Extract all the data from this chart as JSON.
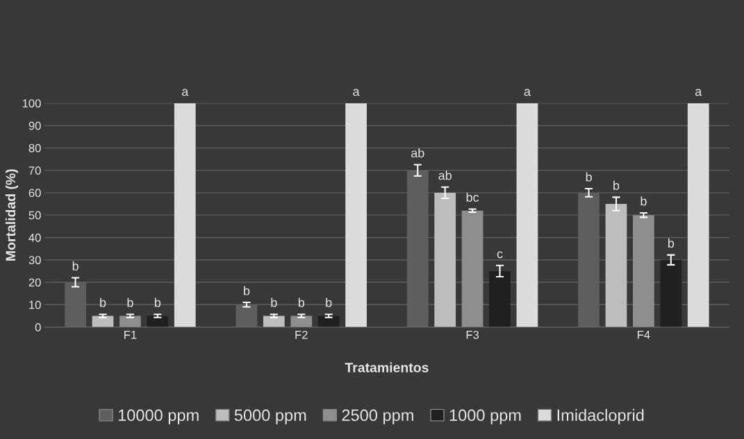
{
  "chart_data": {
    "type": "bar",
    "xlabel": "Tratamientos",
    "ylabel": "Mortalidad (%)",
    "categories": [
      "F1",
      "F2",
      "F3",
      "F4"
    ],
    "series": [
      {
        "name": "10000 ppm",
        "color": "#5e5e5e",
        "values": [
          20,
          10,
          70,
          60
        ],
        "errors": [
          2,
          1,
          2.5,
          1.8
        ],
        "value_labels": [
          "b",
          "b",
          "ab",
          "b"
        ]
      },
      {
        "name": "5000 ppm",
        "color": "#bdbdbd",
        "values": [
          5,
          5,
          60,
          55
        ],
        "errors": [
          0.7,
          0.7,
          2.5,
          3
        ],
        "value_labels": [
          "b",
          "b",
          "ab",
          "b"
        ]
      },
      {
        "name": "2500 ppm",
        "color": "#8e8e8e",
        "values": [
          5,
          5,
          52,
          50
        ],
        "errors": [
          0.7,
          0.7,
          0.7,
          1
        ],
        "value_labels": [
          "b",
          "b",
          "bc",
          "b"
        ]
      },
      {
        "name": "1000 ppm",
        "color": "#202020",
        "values": [
          5,
          5,
          25,
          30
        ],
        "errors": [
          0.7,
          0.7,
          2.5,
          2.2
        ],
        "value_labels": [
          "b",
          "b",
          "c",
          "b"
        ]
      },
      {
        "name": "Imidacloprid",
        "color": "#dcdcdc",
        "values": [
          100,
          100,
          100,
          100
        ],
        "value_labels": [
          "a",
          "a",
          "a",
          "a"
        ]
      }
    ],
    "ylim": [
      0,
      100
    ],
    "yticks": [
      0,
      10,
      20,
      30,
      40,
      50,
      60,
      70,
      80,
      90,
      100
    ],
    "grid": "y",
    "legend": "bottom"
  }
}
